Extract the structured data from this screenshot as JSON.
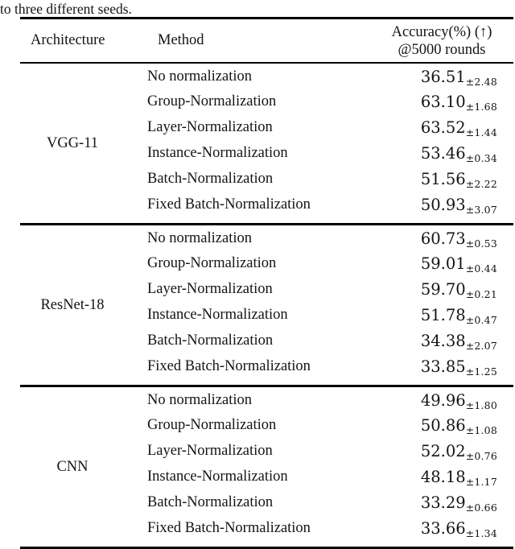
{
  "caption_fragment": "to three different seeds.",
  "table": {
    "headers": {
      "architecture": "Architecture",
      "method": "Method",
      "accuracy_line1": "Accuracy(%) (↑)",
      "accuracy_line2": "@5000 rounds"
    },
    "groups": [
      {
        "architecture": "VGG-11",
        "rows": [
          {
            "method": "No normalization",
            "value": "36.51",
            "std": "±2.48"
          },
          {
            "method": "Group-Normalization",
            "value": "63.10",
            "std": "±1.68"
          },
          {
            "method": "Layer-Normalization",
            "value": "63.52",
            "std": "±1.44"
          },
          {
            "method": "Instance-Normalization",
            "value": "53.46",
            "std": "±0.34"
          },
          {
            "method": "Batch-Normalization",
            "value": "51.56",
            "std": "±2.22"
          },
          {
            "method": "Fixed Batch-Normalization",
            "value": "50.93",
            "std": "±3.07"
          }
        ]
      },
      {
        "architecture": "ResNet-18",
        "rows": [
          {
            "method": "No normalization",
            "value": "60.73",
            "std": "±0.53"
          },
          {
            "method": "Group-Normalization",
            "value": "59.01",
            "std": "±0.44"
          },
          {
            "method": "Layer-Normalization",
            "value": "59.70",
            "std": "±0.21"
          },
          {
            "method": "Instance-Normalization",
            "value": "51.78",
            "std": "±0.47"
          },
          {
            "method": "Batch-Normalization",
            "value": "34.38",
            "std": "±2.07"
          },
          {
            "method": "Fixed Batch-Normalization",
            "value": "33.85",
            "std": "±1.25"
          }
        ]
      },
      {
        "architecture": "CNN",
        "rows": [
          {
            "method": "No normalization",
            "value": "49.96",
            "std": "±1.80"
          },
          {
            "method": "Group-Normalization",
            "value": "50.86",
            "std": "±1.08"
          },
          {
            "method": "Layer-Normalization",
            "value": "52.02",
            "std": "±0.76"
          },
          {
            "method": "Instance-Normalization",
            "value": "48.18",
            "std": "±1.17"
          },
          {
            "method": "Batch-Normalization",
            "value": "33.29",
            "std": "±0.66"
          },
          {
            "method": "Fixed Batch-Normalization",
            "value": "33.66",
            "std": "±1.34"
          }
        ]
      }
    ]
  }
}
